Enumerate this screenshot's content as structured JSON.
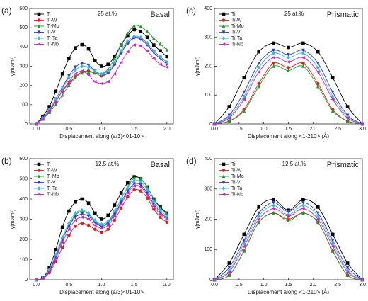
{
  "chart_data": [
    {
      "type": "line",
      "panel_label": "(a)",
      "annotation": "25 at.%",
      "plane": "Basal",
      "x_label": "Displacement along (a/3)<01-10>",
      "y_label": "γ(mJ/m²)",
      "xlim": [
        -0.1,
        2.1
      ],
      "ylim": [
        0,
        600
      ],
      "xticks": [
        {
          "value": 0,
          "label": "0.0"
        },
        {
          "value": 0.5,
          "label": "0.5"
        },
        {
          "value": 1,
          "label": "1.0"
        },
        {
          "value": 1.5,
          "label": "1.5"
        },
        {
          "value": 2,
          "label": "2.0"
        }
      ],
      "yticks": [
        0,
        100,
        200,
        300,
        400,
        500,
        600
      ],
      "x": [
        0,
        0.1,
        0.2,
        0.3,
        0.4,
        0.5,
        0.6,
        0.7,
        0.8,
        0.9,
        1.0,
        1.1,
        1.2,
        1.3,
        1.4,
        1.5,
        1.6,
        1.7,
        1.8,
        1.9,
        2.0
      ],
      "series": [
        {
          "name": "Ti",
          "color": "#000000",
          "marker": "square",
          "values": [
            0,
            40,
            90,
            170,
            260,
            340,
            395,
            412,
            390,
            330,
            300,
            310,
            350,
            410,
            460,
            490,
            480,
            450,
            410,
            380,
            350
          ]
        },
        {
          "name": "Ti-W",
          "color": "#e0201b",
          "marker": "circle",
          "values": [
            0,
            30,
            70,
            120,
            170,
            210,
            245,
            270,
            275,
            265,
            250,
            265,
            310,
            370,
            420,
            450,
            445,
            420,
            380,
            350,
            320
          ]
        },
        {
          "name": "Ti-Mo",
          "color": "#1e9a2a",
          "marker": "triangle-up",
          "values": [
            0,
            25,
            60,
            100,
            150,
            200,
            240,
            265,
            270,
            265,
            260,
            285,
            340,
            410,
            470,
            510,
            505,
            480,
            445,
            415,
            385
          ]
        },
        {
          "name": "Ti-V",
          "color": "#2a3ad8",
          "marker": "triangle-down",
          "values": [
            0,
            30,
            75,
            130,
            190,
            250,
            295,
            315,
            305,
            275,
            255,
            265,
            310,
            370,
            420,
            445,
            440,
            410,
            370,
            340,
            310
          ]
        },
        {
          "name": "Ti-Ta",
          "color": "#33b8e8",
          "marker": "diamond",
          "values": [
            0,
            30,
            75,
            130,
            185,
            240,
            280,
            300,
            295,
            275,
            260,
            275,
            320,
            380,
            430,
            455,
            450,
            420,
            380,
            350,
            320
          ]
        },
        {
          "name": "Ti-Nb",
          "color": "#d020d0",
          "marker": "triangle-left",
          "values": [
            0,
            25,
            65,
            115,
            170,
            220,
            260,
            275,
            255,
            220,
            210,
            220,
            260,
            320,
            375,
            410,
            405,
            380,
            340,
            310,
            295
          ]
        }
      ]
    },
    {
      "type": "line",
      "panel_label": "(c)",
      "annotation": "25 at.%",
      "plane": "Prismatic",
      "x_label": "Displacement along <1-210> (Å)",
      "y_label": "γ(mJ/m²)",
      "xlim": [
        0,
        3
      ],
      "ylim": [
        0,
        400
      ],
      "xticks": [
        {
          "value": 0,
          "label": "0.0"
        },
        {
          "value": 0.5,
          "label": "0.5"
        },
        {
          "value": 1,
          "label": "1.0"
        },
        {
          "value": 1.5,
          "label": "1.5"
        },
        {
          "value": 2,
          "label": "2.0"
        },
        {
          "value": 2.5,
          "label": "2.5"
        },
        {
          "value": 3,
          "label": "3.0"
        }
      ],
      "yticks": [
        0,
        100,
        200,
        300,
        400
      ],
      "x": [
        0,
        0.3,
        0.6,
        0.9,
        1.2,
        1.5,
        1.8,
        2.1,
        2.4,
        2.7,
        3.0
      ],
      "series": [
        {
          "name": "Ti",
          "color": "#000000",
          "marker": "square",
          "values": [
            0,
            60,
            160,
            250,
            280,
            265,
            280,
            250,
            160,
            60,
            0
          ]
        },
        {
          "name": "Ti-W",
          "color": "#e0201b",
          "marker": "circle",
          "values": [
            0,
            10,
            50,
            140,
            210,
            195,
            210,
            140,
            50,
            10,
            0
          ]
        },
        {
          "name": "Ti-Mo",
          "color": "#1e9a2a",
          "marker": "triangle-up",
          "values": [
            0,
            10,
            45,
            130,
            200,
            185,
            200,
            130,
            45,
            10,
            0
          ]
        },
        {
          "name": "Ti-V",
          "color": "#2a3ad8",
          "marker": "triangle-down",
          "values": [
            0,
            30,
            110,
            210,
            255,
            240,
            255,
            210,
            110,
            30,
            0
          ]
        },
        {
          "name": "Ti-Ta",
          "color": "#33b8e8",
          "marker": "diamond",
          "values": [
            0,
            25,
            95,
            195,
            245,
            230,
            245,
            195,
            95,
            25,
            0
          ]
        },
        {
          "name": "Ti-Nb",
          "color": "#d020d0",
          "marker": "triangle-left",
          "values": [
            0,
            20,
            85,
            180,
            230,
            215,
            230,
            180,
            85,
            20,
            0
          ]
        }
      ]
    },
    {
      "type": "line",
      "panel_label": "(b)",
      "annotation": "12.5 at.%",
      "plane": "Basal",
      "x_label": "Displacement along (a/3)<01-10>",
      "y_label": "γ(mJ/m²)",
      "xlim": [
        -0.1,
        2.1
      ],
      "ylim": [
        0,
        600
      ],
      "xticks": [
        {
          "value": 0,
          "label": "0.0"
        },
        {
          "value": 0.5,
          "label": "0.5"
        },
        {
          "value": 1,
          "label": "1.0"
        },
        {
          "value": 1.5,
          "label": "1.5"
        },
        {
          "value": 2,
          "label": "2.0"
        }
      ],
      "yticks": [
        0,
        100,
        200,
        300,
        400,
        500,
        600
      ],
      "x": [
        0,
        0.1,
        0.2,
        0.3,
        0.4,
        0.5,
        0.6,
        0.7,
        0.8,
        0.9,
        1.0,
        1.1,
        1.2,
        1.3,
        1.4,
        1.5,
        1.6,
        1.7,
        1.8,
        1.9,
        2.0
      ],
      "series": [
        {
          "name": "Ti",
          "color": "#000000",
          "marker": "square",
          "values": [
            0,
            10,
            60,
            150,
            260,
            340,
            385,
            400,
            380,
            330,
            300,
            320,
            370,
            430,
            480,
            510,
            500,
            460,
            400,
            360,
            330
          ]
        },
        {
          "name": "Ti-W",
          "color": "#e0201b",
          "marker": "circle",
          "values": [
            0,
            5,
            35,
            90,
            160,
            220,
            265,
            280,
            270,
            250,
            235,
            250,
            295,
            355,
            410,
            445,
            440,
            405,
            350,
            310,
            285
          ]
        },
        {
          "name": "Ti-Mo",
          "color": "#1e9a2a",
          "marker": "triangle-up",
          "values": [
            0,
            8,
            45,
            115,
            200,
            270,
            320,
            340,
            325,
            290,
            270,
            285,
            335,
            400,
            460,
            505,
            500,
            460,
            400,
            355,
            325
          ]
        },
        {
          "name": "Ti-V",
          "color": "#2a3ad8",
          "marker": "triangle-down",
          "values": [
            0,
            8,
            45,
            115,
            200,
            265,
            310,
            325,
            315,
            285,
            265,
            280,
            325,
            385,
            440,
            475,
            470,
            430,
            375,
            335,
            305
          ]
        },
        {
          "name": "Ti-Ta",
          "color": "#33b8e8",
          "marker": "diamond",
          "values": [
            0,
            8,
            50,
            125,
            210,
            280,
            330,
            345,
            330,
            295,
            275,
            290,
            340,
            400,
            455,
            490,
            485,
            445,
            385,
            345,
            315
          ]
        },
        {
          "name": "Ti-Nb",
          "color": "#d020d0",
          "marker": "triangle-left",
          "values": [
            0,
            6,
            40,
            105,
            185,
            250,
            295,
            310,
            300,
            270,
            255,
            270,
            315,
            375,
            430,
            465,
            460,
            420,
            365,
            325,
            300
          ]
        }
      ]
    },
    {
      "type": "line",
      "panel_label": "(d)",
      "annotation": "12.5 at.%",
      "plane": "Prismatic",
      "x_label": "Displacement along <1-210> (Å)",
      "y_label": "γ(mJ/m²)",
      "xlim": [
        0,
        3
      ],
      "ylim": [
        0,
        400
      ],
      "xticks": [
        {
          "value": 0,
          "label": "0.0"
        },
        {
          "value": 0.5,
          "label": "0.5"
        },
        {
          "value": 1,
          "label": "1.0"
        },
        {
          "value": 1.5,
          "label": "1.5"
        },
        {
          "value": 2,
          "label": "2.0"
        },
        {
          "value": 2.5,
          "label": "2.5"
        },
        {
          "value": 3,
          "label": "3.0"
        }
      ],
      "yticks": [
        0,
        100,
        200,
        300,
        400
      ],
      "x": [
        0,
        0.3,
        0.6,
        0.9,
        1.2,
        1.5,
        1.8,
        2.1,
        2.4,
        2.7,
        3.0
      ],
      "series": [
        {
          "name": "Ti",
          "color": "#000000",
          "marker": "square",
          "values": [
            0,
            55,
            150,
            240,
            265,
            230,
            265,
            240,
            150,
            55,
            0
          ]
        },
        {
          "name": "Ti-W",
          "color": "#e0201b",
          "marker": "circle",
          "values": [
            0,
            15,
            95,
            190,
            220,
            200,
            220,
            190,
            95,
            15,
            0
          ]
        },
        {
          "name": "Ti-Mo",
          "color": "#1e9a2a",
          "marker": "triangle-up",
          "values": [
            0,
            15,
            95,
            190,
            220,
            195,
            220,
            190,
            95,
            15,
            0
          ]
        },
        {
          "name": "Ti-V",
          "color": "#2a3ad8",
          "marker": "triangle-down",
          "values": [
            0,
            40,
            130,
            220,
            255,
            225,
            255,
            220,
            130,
            40,
            0
          ]
        },
        {
          "name": "Ti-Ta",
          "color": "#33b8e8",
          "marker": "diamond",
          "values": [
            0,
            30,
            120,
            210,
            245,
            215,
            245,
            210,
            120,
            30,
            0
          ]
        },
        {
          "name": "Ti-Nb",
          "color": "#d020d0",
          "marker": "triangle-left",
          "values": [
            0,
            25,
            110,
            200,
            235,
            210,
            235,
            200,
            110,
            25,
            0
          ]
        }
      ]
    }
  ]
}
